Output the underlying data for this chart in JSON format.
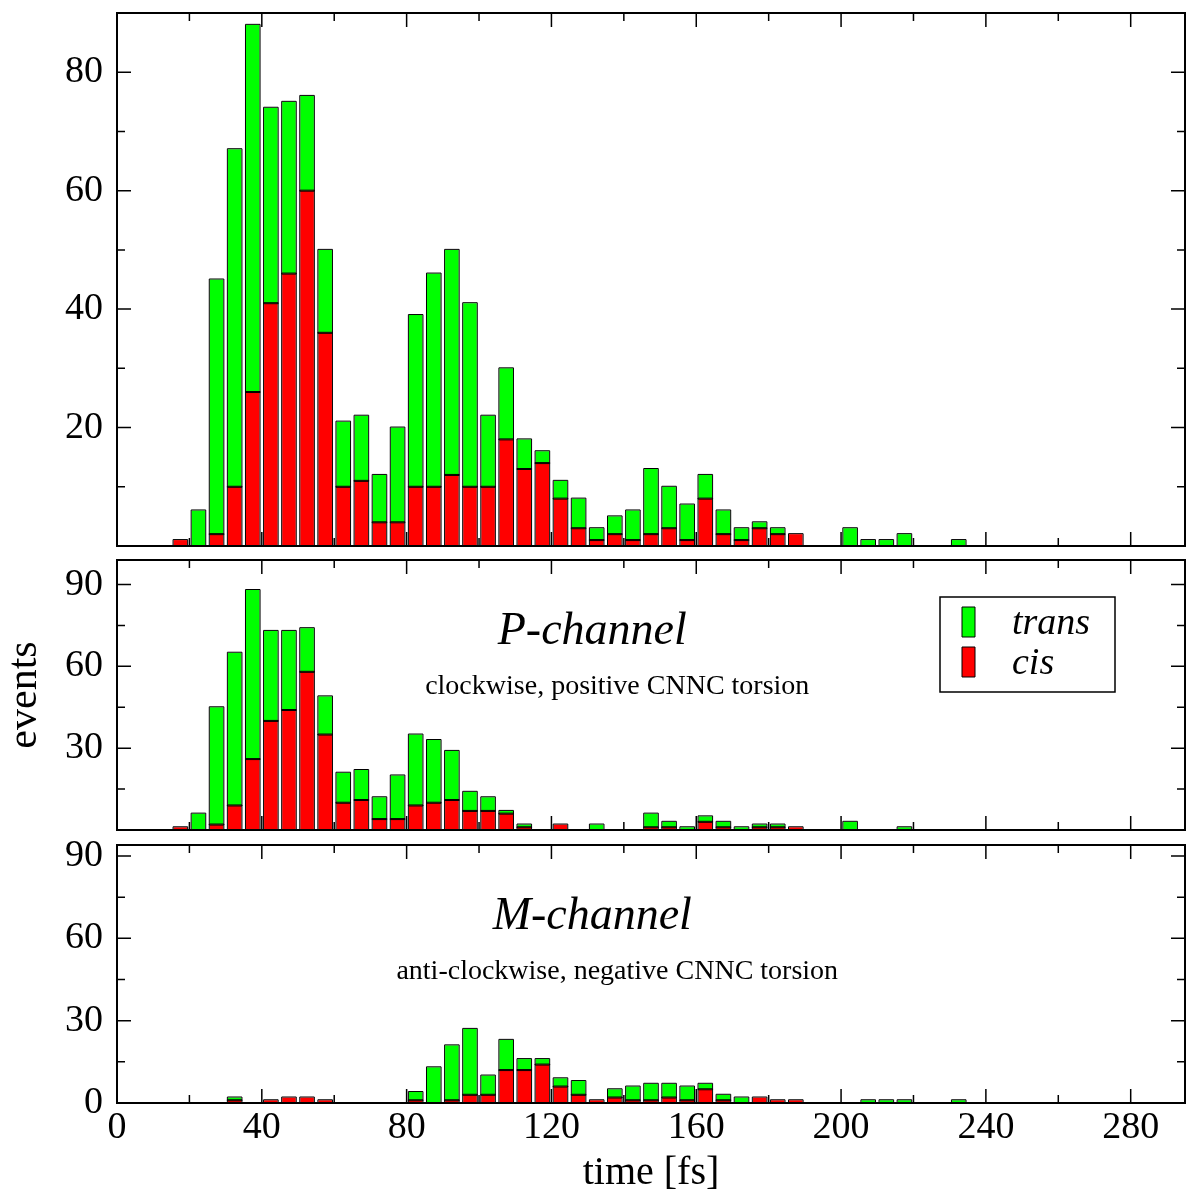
{
  "chart_data": [
    {
      "type": "bar",
      "stacked": true,
      "tick_labels": "y",
      "x": [
        17.5,
        22.5,
        27.5,
        32.5,
        37.5,
        42.5,
        47.5,
        52.5,
        57.5,
        62.5,
        67.5,
        72.5,
        77.5,
        82.5,
        87.5,
        92.5,
        97.5,
        102.5,
        107.5,
        112.5,
        117.5,
        122.5,
        127.5,
        132.5,
        137.5,
        142.5,
        147.5,
        152.5,
        157.5,
        162.5,
        167.5,
        172.5,
        177.5,
        182.5,
        187.5,
        192.5,
        197.5,
        202.5,
        207.5,
        212.5,
        217.5,
        222.5,
        227.5,
        232.5
      ],
      "series": [
        {
          "color": "#ff0000",
          "values": [
            1,
            null,
            2,
            10,
            26,
            41,
            46,
            60,
            36,
            10,
            11,
            4,
            4,
            10,
            10,
            12,
            10,
            10,
            18,
            13,
            14,
            8,
            3,
            1,
            2,
            1,
            2,
            3,
            1,
            8,
            2,
            1,
            3,
            2,
            2,
            null,
            null,
            null,
            null,
            null,
            null,
            null,
            null,
            null
          ]
        },
        {
          "color": "#00ff00",
          "values": [
            null,
            6,
            43,
            57,
            62,
            33,
            29,
            16,
            14,
            11,
            11,
            8,
            16,
            29,
            36,
            38,
            31,
            12,
            12,
            5,
            2,
            3,
            5,
            2,
            3,
            5,
            11,
            7,
            6,
            4,
            4,
            2,
            1,
            1,
            null,
            null,
            null,
            3,
            1,
            1,
            2,
            null,
            null,
            1
          ]
        }
      ],
      "xlim": [
        0,
        295
      ],
      "xticks": [
        0,
        {
          "value": 20,
          "label": null
        },
        40,
        {
          "value": 60,
          "label": null
        },
        80,
        {
          "value": 100,
          "label": null
        },
        120,
        {
          "value": 140,
          "label": null
        },
        160,
        {
          "value": 180,
          "label": null
        },
        200,
        {
          "value": 220,
          "label": null
        },
        240,
        {
          "value": 260,
          "label": null
        },
        280
      ],
      "ylim": [
        0,
        90
      ],
      "yticks": [
        {
          "value": 10,
          "label": null
        },
        20,
        {
          "value": 30,
          "label": null
        },
        40,
        {
          "value": 50,
          "label": null
        },
        60,
        {
          "value": 70,
          "label": null
        },
        80
      ]
    },
    {
      "type": "bar",
      "stacked": true,
      "tick_labels": "y",
      "title": "P-channel",
      "subtitle": "clockwise, positive CNNC torsion",
      "ylabel": "events",
      "legend": "top right",
      "x": [
        17.5,
        22.5,
        27.5,
        32.5,
        37.5,
        42.5,
        47.5,
        52.5,
        57.5,
        62.5,
        67.5,
        72.5,
        77.5,
        82.5,
        87.5,
        92.5,
        97.5,
        102.5,
        107.5,
        112.5,
        117.5,
        122.5,
        127.5,
        132.5,
        137.5,
        142.5,
        147.5,
        152.5,
        157.5,
        162.5,
        167.5,
        172.5,
        177.5,
        182.5,
        187.5,
        192.5,
        197.5,
        202.5,
        207.5,
        212.5,
        217.5
      ],
      "series": [
        {
          "name": "cis",
          "color": "#ff0000",
          "values": [
            1,
            null,
            2,
            9,
            26,
            40,
            44,
            58,
            35,
            10,
            11,
            4,
            4,
            9,
            10,
            11,
            7,
            7,
            6,
            1,
            null,
            2,
            null,
            null,
            null,
            null,
            1,
            1,
            null,
            3,
            1,
            null,
            1,
            1,
            1,
            null,
            null,
            null,
            null,
            null,
            null
          ]
        },
        {
          "name": "trans",
          "color": "#00ff00",
          "values": [
            null,
            6,
            43,
            56,
            62,
            33,
            29,
            16,
            14,
            11,
            11,
            8,
            16,
            26,
            23,
            18,
            7,
            5,
            1,
            1,
            null,
            null,
            null,
            2,
            null,
            null,
            5,
            2,
            1,
            2,
            2,
            1,
            1,
            1,
            null,
            null,
            null,
            3,
            null,
            null,
            1
          ]
        }
      ],
      "xlim": [
        0,
        295
      ],
      "xticks": [
        0,
        {
          "value": 20,
          "label": null
        },
        40,
        {
          "value": 60,
          "label": null
        },
        80,
        {
          "value": 100,
          "label": null
        },
        120,
        {
          "value": 140,
          "label": null
        },
        160,
        {
          "value": 180,
          "label": null
        },
        200,
        {
          "value": 220,
          "label": null
        },
        240,
        {
          "value": 260,
          "label": null
        },
        280
      ],
      "ylim": [
        0,
        99
      ],
      "yticks": [
        {
          "value": 15,
          "label": null
        },
        30,
        {
          "value": 45,
          "label": null
        },
        60,
        {
          "value": 75,
          "label": null
        },
        90
      ]
    },
    {
      "type": "bar",
      "stacked": true,
      "title": "M-channel",
      "subtitle": "anti-clockwise, negative CNNC torsion",
      "xlabel": "time [fs]",
      "x": [
        32.5,
        37.5,
        42.5,
        47.5,
        52.5,
        57.5,
        62.5,
        67.5,
        72.5,
        77.5,
        82.5,
        87.5,
        92.5,
        97.5,
        102.5,
        107.5,
        112.5,
        117.5,
        122.5,
        127.5,
        132.5,
        137.5,
        142.5,
        147.5,
        152.5,
        157.5,
        162.5,
        167.5,
        172.5,
        177.5,
        182.5,
        187.5,
        192.5,
        197.5,
        202.5,
        207.5,
        212.5,
        217.5,
        222.5,
        227.5,
        232.5
      ],
      "series": [
        {
          "color": "#ff0000",
          "values": [
            1,
            null,
            1,
            2,
            2,
            1,
            null,
            null,
            null,
            null,
            1,
            null,
            1,
            3,
            3,
            12,
            12,
            14,
            6,
            3,
            1,
            2,
            1,
            1,
            2,
            1,
            5,
            1,
            null,
            2,
            1,
            1,
            null,
            null,
            null,
            null,
            null,
            null,
            null,
            null,
            null
          ]
        },
        {
          "color": "#00ff00",
          "values": [
            1,
            null,
            null,
            null,
            null,
            null,
            null,
            null,
            null,
            null,
            3,
            13,
            20,
            24,
            7,
            11,
            4,
            2,
            3,
            5,
            null,
            3,
            5,
            6,
            5,
            5,
            2,
            2,
            2,
            null,
            null,
            null,
            null,
            null,
            null,
            1,
            1,
            1,
            null,
            null,
            1
          ]
        }
      ],
      "xlim": [
        0,
        295
      ],
      "xticks": [
        0,
        {
          "value": 20,
          "label": null
        },
        40,
        {
          "value": 60,
          "label": null
        },
        80,
        {
          "value": 100,
          "label": null
        },
        120,
        {
          "value": 140,
          "label": null
        },
        160,
        {
          "value": 180,
          "label": null
        },
        200,
        {
          "value": 220,
          "label": null
        },
        240,
        {
          "value": 260,
          "label": null
        },
        280
      ],
      "ylim": [
        0,
        94
      ],
      "yticks": [
        0,
        {
          "value": 15,
          "label": null
        },
        30,
        {
          "value": 45,
          "label": null
        },
        60,
        {
          "value": 75,
          "label": null
        },
        90
      ]
    }
  ]
}
